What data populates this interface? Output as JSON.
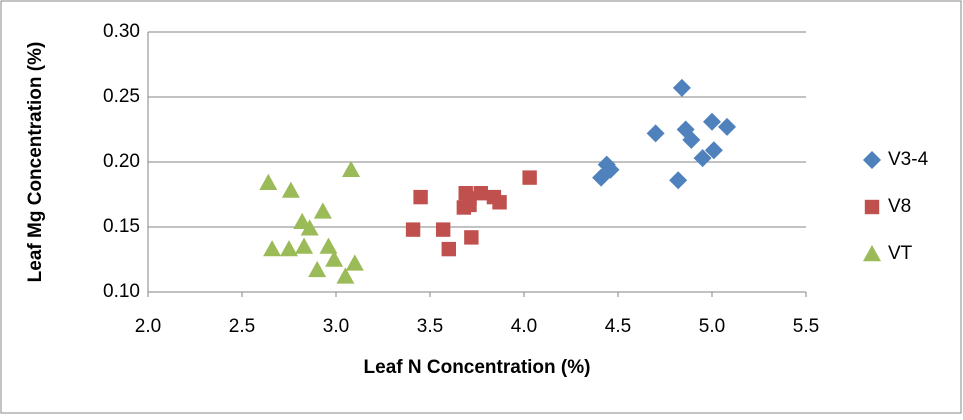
{
  "chart_data": {
    "type": "scatter",
    "xlabel": "Leaf N Concentration (%)",
    "ylabel": "Leaf Mg Concentration (%)",
    "xlim": [
      2,
      5.5
    ],
    "xticks": [
      {
        "value": 2,
        "label": "2.0"
      },
      2.5,
      {
        "value": 3,
        "label": "3.0"
      },
      3.5,
      {
        "value": 4,
        "label": "4.0"
      },
      4.5,
      {
        "value": 5,
        "label": "5.0"
      },
      5.5
    ],
    "ylim": [
      0.1,
      0.3
    ],
    "yticks": [
      {
        "value": 0.1,
        "label": "0.10"
      },
      0.15,
      {
        "value": 0.2,
        "label": "0.20"
      },
      0.25,
      {
        "value": 0.3,
        "label": "0.30"
      }
    ],
    "grid": true,
    "legend": "right",
    "series": [
      {
        "name": "V3-4",
        "color": "#4f81bd",
        "marker": "diamond",
        "x": [
          4.84,
          4.7,
          4.86,
          4.89,
          5.0,
          5.08,
          5.01,
          4.95,
          4.44,
          4.46,
          4.41,
          4.82
        ],
        "values": [
          0.257,
          0.222,
          0.225,
          0.217,
          0.231,
          0.227,
          0.209,
          0.203,
          0.198,
          0.194,
          0.188,
          0.186
        ]
      },
      {
        "name": "V8",
        "color": "#c0504d",
        "marker": "square",
        "x": [
          3.45,
          3.41,
          3.57,
          3.6,
          3.72,
          3.69,
          3.71,
          3.68,
          3.71,
          3.77,
          3.84,
          3.87,
          4.03
        ],
        "values": [
          0.173,
          0.148,
          0.148,
          0.133,
          0.142,
          0.176,
          0.172,
          0.165,
          0.167,
          0.176,
          0.173,
          0.169,
          0.188
        ]
      },
      {
        "name": "VT",
        "color": "#9bbb59",
        "marker": "triangle",
        "x": [
          2.64,
          2.76,
          3.08,
          2.82,
          2.86,
          2.93,
          2.66,
          2.75,
          2.83,
          2.96,
          2.99,
          3.1,
          2.9,
          3.05
        ],
        "values": [
          0.184,
          0.178,
          0.194,
          0.154,
          0.149,
          0.162,
          0.133,
          0.133,
          0.135,
          0.135,
          0.125,
          0.122,
          0.117,
          0.112
        ]
      }
    ]
  }
}
